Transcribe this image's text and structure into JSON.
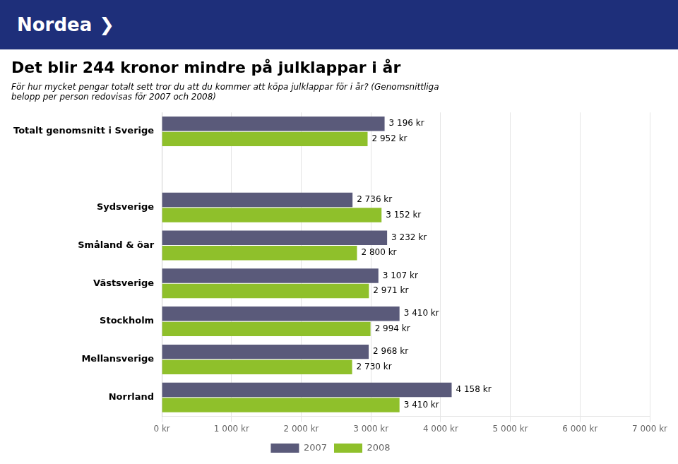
{
  "chart_data": {
    "type": "bar",
    "orientation": "horizontal",
    "title": "Det blir 244 kronor mindre på julklappar i år",
    "subtitle": [
      "För hur mycket pengar totalt sett tror du att du kommer att köpa julklappar för i år? (Genomsnittliga",
      "belopp per person redovisas för 2007 och 2008)"
    ],
    "annotations": [
      "Nordea",
      "❯"
    ],
    "categories": [
      "Totalt genomsnitt i Sverige",
      null,
      "Sydsverige",
      "Småland & öar",
      "Västsverige",
      "Stockholm",
      "Mellansverige",
      "Norrland"
    ],
    "series": [
      {
        "name": "2007",
        "color": "#5a5a7a",
        "values": [
          3196,
          null,
          2736,
          3232,
          3107,
          3410,
          2968,
          4158
        ],
        "value_labels": [
          "3 196 kr",
          null,
          "2 736 kr",
          "3 232 kr",
          "3 107 kr",
          "3 410 kr",
          "2 968 kr",
          "4 158 kr"
        ]
      },
      {
        "name": "2008",
        "color": "#8fc02b",
        "values": [
          2952,
          null,
          3152,
          2800,
          2971,
          2994,
          2730,
          3410
        ],
        "value_labels": [
          "2 952 kr",
          null,
          "3 152 kr",
          "2 800 kr",
          "2 971 kr",
          "2 994 kr",
          "2 730 kr",
          "3 410 kr"
        ]
      }
    ],
    "xlim": [
      0,
      7000
    ],
    "xticks": [
      {
        "value": 0,
        "label": "0 kr"
      },
      {
        "value": 1000,
        "label": "1 000 kr"
      },
      {
        "value": 2000,
        "label": "2 000 kr"
      },
      {
        "value": 3000,
        "label": "3 000 kr"
      },
      {
        "value": 4000,
        "label": "4 000 kr"
      },
      {
        "value": 5000,
        "label": "5 000 kr"
      },
      {
        "value": 6000,
        "label": "6 000 kr"
      },
      {
        "value": 7000,
        "label": "7 000 kr"
      }
    ],
    "grid": true,
    "legend": "bottom",
    "data_labels": true
  }
}
